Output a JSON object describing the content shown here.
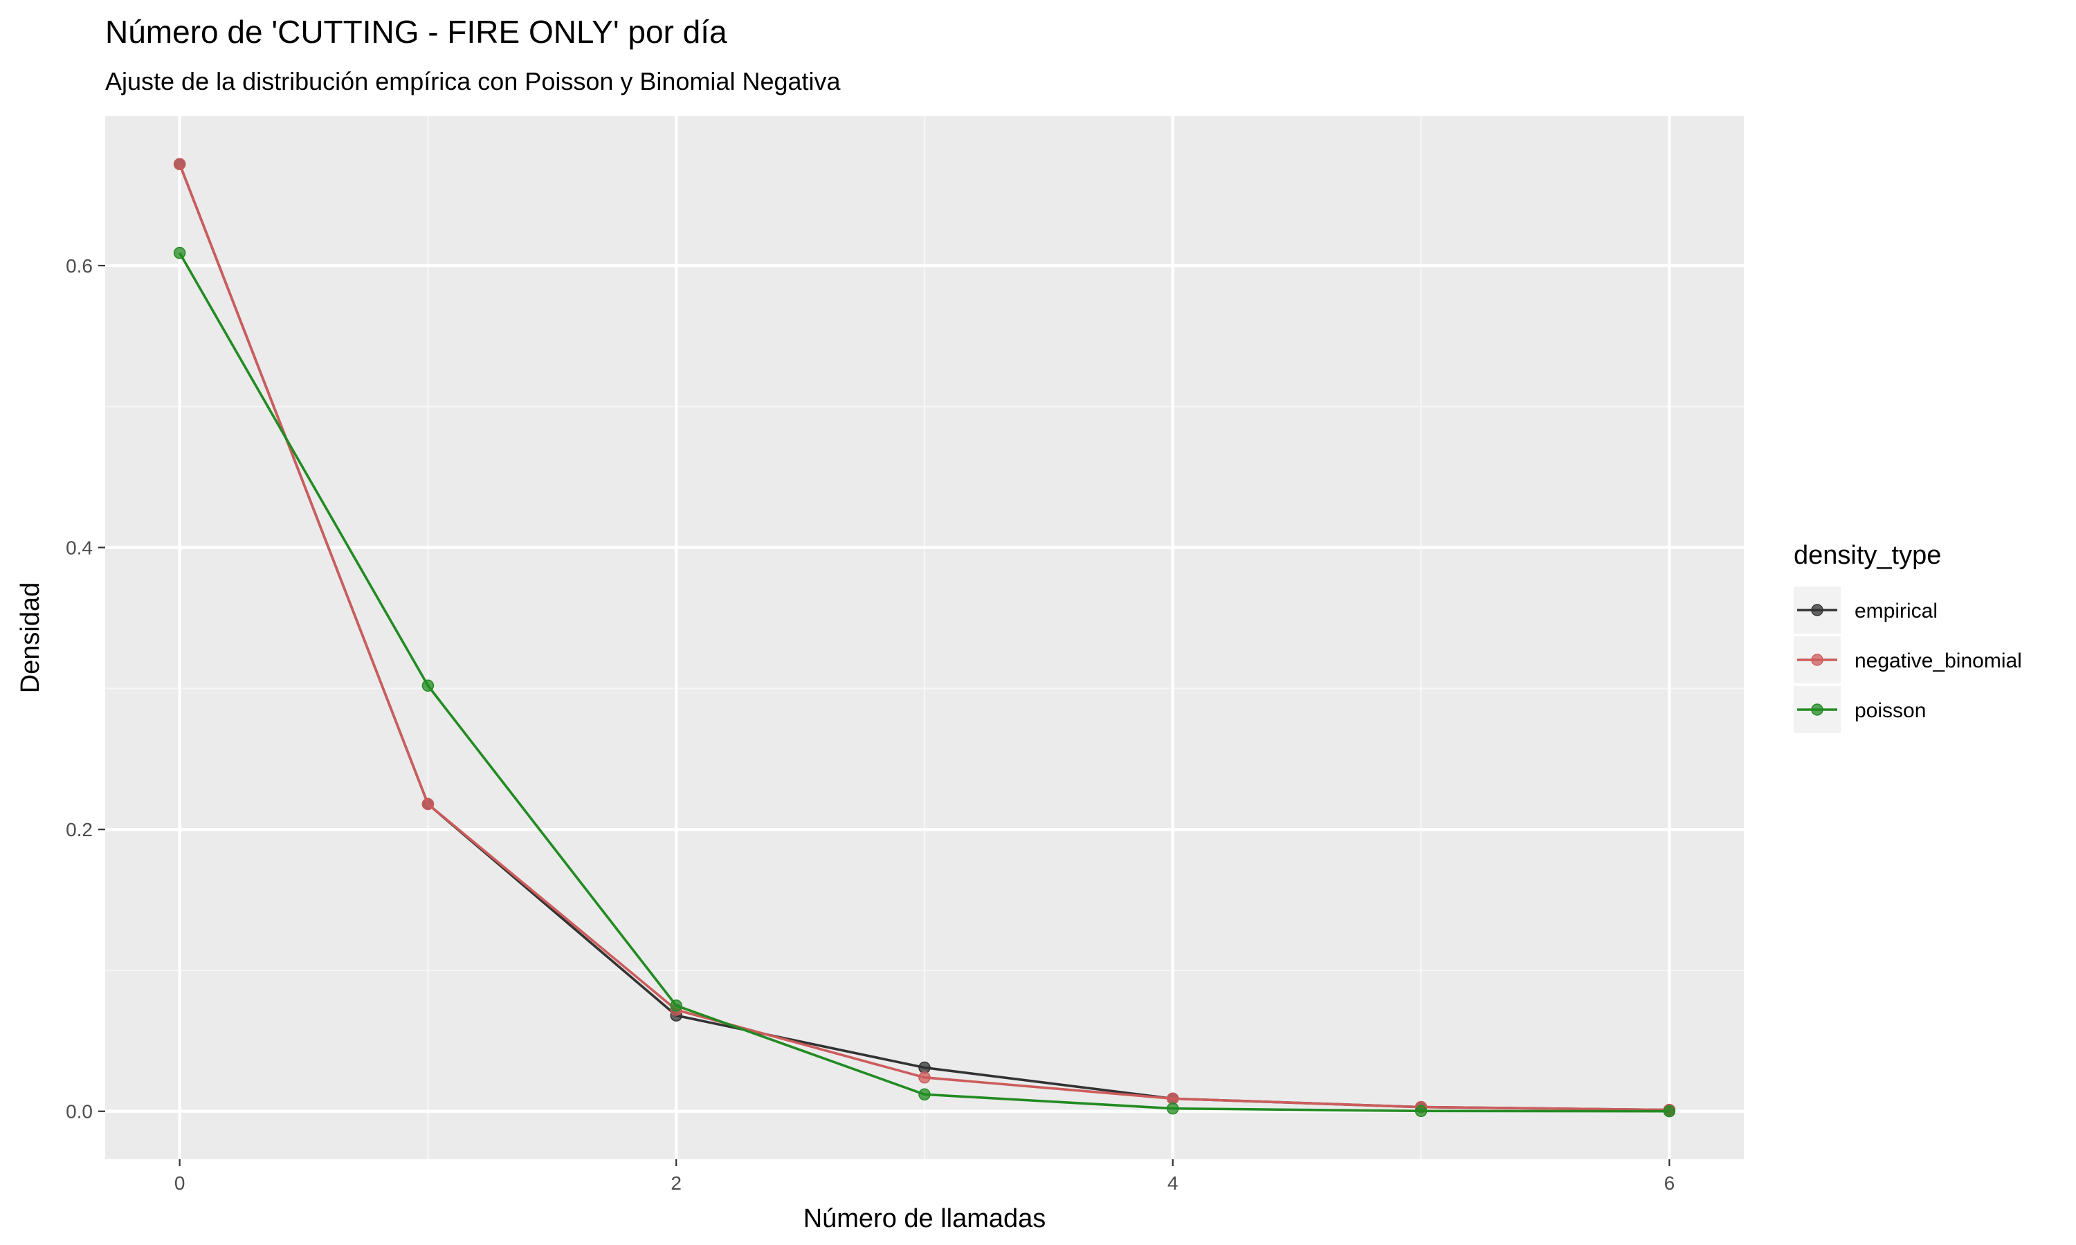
{
  "chart_data": {
    "type": "line",
    "title": "Número de 'CUTTING - FIRE ONLY' por día",
    "subtitle": "Ajuste de la distribución empírica con Poisson y Binomial Negativa",
    "xlabel": "Número de llamadas",
    "ylabel": "Densidad",
    "xlim": [
      -0.3,
      6.3
    ],
    "ylim": [
      -0.034,
      0.706
    ],
    "x_ticks": [
      0,
      2,
      4,
      6
    ],
    "x_tick_labels": [
      "0",
      "2",
      "4",
      "6"
    ],
    "x_minor": [
      1,
      3,
      5
    ],
    "y_ticks": [
      0.0,
      0.2,
      0.4,
      0.6
    ],
    "y_tick_labels": [
      "0.0",
      "0.2",
      "0.4",
      "0.6"
    ],
    "y_minor": [
      0.1,
      0.3,
      0.5
    ],
    "grid": true,
    "legend": {
      "title": "density_type",
      "placement": "right"
    },
    "x": [
      0,
      1,
      2,
      3,
      4,
      5,
      6
    ],
    "series": [
      {
        "name": "empirical",
        "color": "#333333",
        "values": [
          0.672,
          0.218,
          0.068,
          0.031,
          0.009,
          0.003,
          0.001
        ]
      },
      {
        "name": "negative_binomial",
        "color": "#cd5c5c",
        "values": [
          0.672,
          0.218,
          0.072,
          0.024,
          0.009,
          0.003,
          0.001
        ]
      },
      {
        "name": "poisson",
        "color": "#228b22",
        "values": [
          0.609,
          0.302,
          0.075,
          0.012,
          0.002,
          0.0002,
          2e-05
        ]
      }
    ]
  }
}
